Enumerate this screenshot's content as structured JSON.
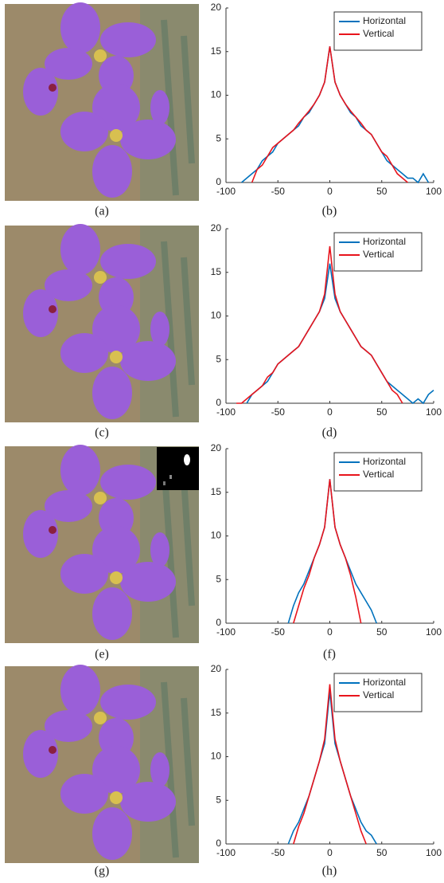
{
  "images": [
    {
      "caption": "(a)"
    },
    {
      "caption": "(c)"
    },
    {
      "caption": "(e)"
    },
    {
      "caption": "(g)"
    }
  ],
  "chart_data": [
    {
      "type": "line",
      "caption": "(b)",
      "legend": "upper right",
      "x": [
        -100,
        -95,
        -90,
        -85,
        -80,
        -75,
        -70,
        -65,
        -60,
        -55,
        -50,
        -45,
        -40,
        -35,
        -30,
        -25,
        -20,
        -15,
        -10,
        -5,
        0,
        5,
        10,
        15,
        20,
        25,
        30,
        35,
        40,
        45,
        50,
        55,
        60,
        65,
        70,
        75,
        80,
        85,
        90,
        95,
        100
      ],
      "series": [
        {
          "name": "Horizontal",
          "color": "#0072bd",
          "values": [
            null,
            null,
            null,
            0,
            0.5,
            1,
            1.5,
            2.5,
            3,
            3.5,
            4.5,
            5,
            5.5,
            6,
            6.5,
            7.5,
            8,
            9,
            10,
            11.5,
            15.6,
            11.5,
            10,
            9,
            8,
            7.5,
            6.5,
            6,
            5.5,
            4.5,
            3.5,
            2.5,
            2,
            1.5,
            1,
            0.5,
            0.5,
            0,
            1,
            0,
            null
          ]
        },
        {
          "name": "Vertical",
          "color": "#e8141c",
          "values": [
            null,
            null,
            null,
            null,
            null,
            0,
            1.5,
            2,
            3,
            4,
            4.5,
            5,
            5.5,
            6,
            6.8,
            7.5,
            8.2,
            9,
            10,
            11.5,
            15.6,
            11.5,
            10,
            9,
            8.2,
            7.5,
            6.8,
            6,
            5.5,
            4.5,
            3.5,
            3,
            2,
            1,
            0.5,
            0,
            null,
            null,
            null,
            null,
            null
          ]
        }
      ],
      "xlim": [
        -100,
        100
      ],
      "xticks": [
        -100,
        -50,
        0,
        50,
        100
      ],
      "ylim": [
        0,
        20
      ],
      "yticks": [
        0,
        5,
        10,
        15,
        20
      ]
    },
    {
      "type": "line",
      "caption": "(d)",
      "legend": "upper right",
      "x": [
        -100,
        -95,
        -90,
        -85,
        -80,
        -75,
        -70,
        -65,
        -60,
        -55,
        -50,
        -45,
        -40,
        -35,
        -30,
        -25,
        -20,
        -15,
        -10,
        -5,
        0,
        5,
        10,
        15,
        20,
        25,
        30,
        35,
        40,
        45,
        50,
        55,
        60,
        65,
        70,
        75,
        80,
        85,
        90,
        95,
        100
      ],
      "series": [
        {
          "name": "Horizontal",
          "color": "#0072bd",
          "values": [
            null,
            null,
            null,
            null,
            0,
            1,
            1.5,
            2,
            2.5,
            3.5,
            4.5,
            5,
            5.5,
            6,
            6.5,
            7.5,
            8.5,
            9.5,
            10.5,
            12,
            16,
            12,
            10.5,
            9.5,
            8.5,
            7.5,
            6.5,
            6,
            5.5,
            4.5,
            3.5,
            2.5,
            2,
            1.5,
            1,
            0.5,
            0,
            0.5,
            0,
            1,
            1.5
          ]
        },
        {
          "name": "Vertical",
          "color": "#e8141c",
          "values": [
            null,
            null,
            0,
            0,
            0.5,
            1,
            1.5,
            2,
            3,
            3.5,
            4.5,
            5,
            5.5,
            6,
            6.5,
            7.5,
            8.5,
            9.5,
            10.5,
            12.5,
            18,
            12.5,
            10.5,
            9.5,
            8.5,
            7.5,
            6.5,
            6,
            5.5,
            4.5,
            3.5,
            2.5,
            1.5,
            1,
            0,
            null,
            null,
            null,
            null,
            null,
            null
          ]
        }
      ],
      "xlim": [
        -100,
        100
      ],
      "xticks": [
        -100,
        -50,
        0,
        50,
        100
      ],
      "ylim": [
        0,
        20
      ],
      "yticks": [
        0,
        5,
        10,
        15,
        20
      ]
    },
    {
      "type": "line",
      "caption": "(f)",
      "legend": "upper right",
      "x": [
        -100,
        -95,
        -90,
        -85,
        -80,
        -75,
        -70,
        -65,
        -60,
        -55,
        -50,
        -45,
        -40,
        -35,
        -30,
        -25,
        -20,
        -15,
        -10,
        -5,
        0,
        5,
        10,
        15,
        20,
        25,
        30,
        35,
        40,
        45,
        50,
        55,
        60,
        65,
        70,
        75,
        80,
        85,
        90,
        95,
        100
      ],
      "series": [
        {
          "name": "Horizontal",
          "color": "#0072bd",
          "values": [
            null,
            null,
            null,
            null,
            null,
            null,
            null,
            null,
            null,
            null,
            null,
            null,
            0,
            2,
            3.5,
            4.5,
            6,
            7.5,
            9,
            11,
            16.5,
            11,
            9,
            7.5,
            6,
            4.5,
            3.5,
            2.5,
            1.5,
            0,
            null,
            null,
            null,
            null,
            null,
            null,
            null,
            null,
            null,
            null,
            null
          ]
        },
        {
          "name": "Vertical",
          "color": "#e8141c",
          "values": [
            null,
            null,
            null,
            null,
            null,
            null,
            null,
            null,
            null,
            null,
            null,
            null,
            null,
            0,
            2,
            4,
            5.5,
            7.5,
            9,
            11,
            16.5,
            11,
            9,
            7.5,
            5.5,
            3,
            0,
            null,
            null,
            null,
            null,
            null,
            null,
            null,
            null,
            null,
            null,
            null,
            null,
            null,
            null
          ]
        }
      ],
      "xlim": [
        -100,
        100
      ],
      "xticks": [
        -100,
        -50,
        0,
        50,
        100
      ],
      "ylim": [
        0,
        20
      ],
      "yticks": [
        0,
        5,
        10,
        15,
        20
      ]
    },
    {
      "type": "line",
      "caption": "(h)",
      "legend": "upper right",
      "x": [
        -100,
        -95,
        -90,
        -85,
        -80,
        -75,
        -70,
        -65,
        -60,
        -55,
        -50,
        -45,
        -40,
        -35,
        -30,
        -25,
        -20,
        -15,
        -10,
        -5,
        0,
        5,
        10,
        15,
        20,
        25,
        30,
        35,
        40,
        45,
        50,
        55,
        60,
        65,
        70,
        75,
        80,
        85,
        90,
        95,
        100
      ],
      "series": [
        {
          "name": "Horizontal",
          "color": "#0072bd",
          "values": [
            null,
            null,
            null,
            null,
            null,
            null,
            null,
            null,
            null,
            null,
            null,
            null,
            0,
            1.5,
            2.5,
            4,
            5.5,
            7.5,
            9.5,
            11.5,
            17.5,
            11.5,
            9.5,
            7.5,
            5.5,
            4,
            2.5,
            1.5,
            1,
            0,
            null,
            null,
            null,
            null,
            null,
            null,
            null,
            null,
            null,
            null,
            null
          ]
        },
        {
          "name": "Vertical",
          "color": "#e8141c",
          "values": [
            null,
            null,
            null,
            null,
            null,
            null,
            null,
            null,
            null,
            null,
            null,
            null,
            null,
            0,
            2,
            3.5,
            5.5,
            7.5,
            9.5,
            12,
            18.3,
            12,
            9.5,
            7.5,
            5.5,
            3.5,
            1.5,
            0,
            null,
            null,
            null,
            null,
            null,
            null,
            null,
            null,
            null,
            null,
            null,
            null,
            null
          ]
        }
      ],
      "xlim": [
        -100,
        100
      ],
      "xticks": [
        -100,
        -50,
        0,
        50,
        100
      ],
      "ylim": [
        0,
        20
      ],
      "yticks": [
        0,
        5,
        10,
        15,
        20
      ]
    }
  ]
}
